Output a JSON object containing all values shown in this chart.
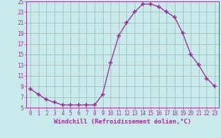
{
  "hours": [
    0,
    1,
    2,
    3,
    4,
    5,
    6,
    7,
    8,
    9,
    10,
    11,
    12,
    13,
    14,
    15,
    16,
    17,
    18,
    19,
    20,
    21,
    22,
    23
  ],
  "values": [
    8.5,
    7.5,
    6.5,
    6.0,
    5.5,
    5.5,
    5.5,
    5.5,
    5.5,
    7.5,
    13.5,
    18.5,
    21.0,
    23.0,
    24.5,
    24.5,
    24.0,
    23.0,
    22.0,
    19.0,
    15.0,
    13.0,
    10.5,
    9.0
  ],
  "line_color": "#993399",
  "marker": "+",
  "markersize": 4,
  "markeredgewidth": 1.2,
  "linewidth": 1.0,
  "bg_color": "#c8eaea",
  "grid_color": "#aabbbb",
  "xlabel": "Windchill (Refroidissement éolien,°C)",
  "xlabel_color": "#993399",
  "tick_color": "#993399",
  "label_color": "#993399",
  "ylim": [
    5,
    25
  ],
  "xlim": [
    -0.5,
    23.5
  ],
  "yticks": [
    5,
    7,
    9,
    11,
    13,
    15,
    17,
    19,
    21,
    23,
    25
  ],
  "xticks": [
    0,
    1,
    2,
    3,
    4,
    5,
    6,
    7,
    8,
    9,
    10,
    11,
    12,
    13,
    14,
    15,
    16,
    17,
    18,
    19,
    20,
    21,
    22,
    23
  ],
  "tick_fontsize": 5.5,
  "xlabel_fontsize": 6.5
}
